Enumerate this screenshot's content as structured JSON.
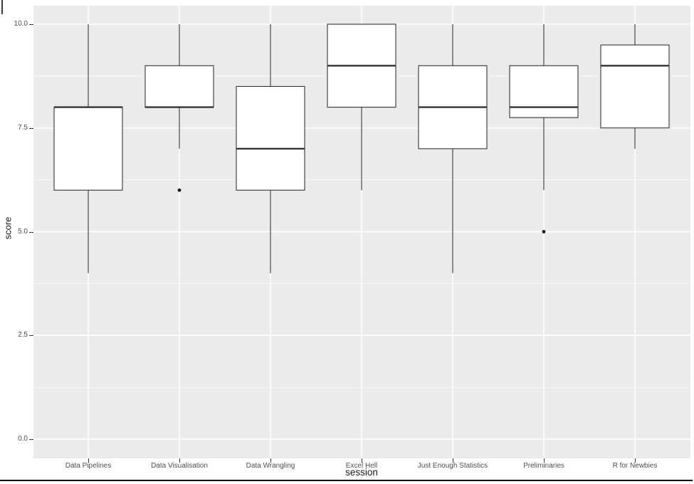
{
  "figure": {
    "title": "",
    "x_axis_title": "session",
    "y_axis_title": "score"
  },
  "chart_data": {
    "type": "boxplot",
    "title": "",
    "xlabel": "session",
    "ylabel": "score",
    "ylim": [
      0,
      10
    ],
    "y_tick_labels": [
      "0.0",
      "2.5",
      "5.0",
      "7.5",
      "10.0"
    ],
    "y_tick_values": [
      0,
      2.5,
      5,
      7.5,
      10
    ],
    "y_minor_tick_values": [
      1.25,
      3.75,
      6.25,
      8.75
    ],
    "grid": "horizontal major+minor white lines, vertical major white line per category",
    "legend": "none",
    "panel_style": "ggplot gray panel, white gridlines, white boxes with dark outline, no whisker caps",
    "categories": [
      "Data Pipelines",
      "Data Visualisation",
      "Data Wrangling",
      "Excel Hell",
      "Just Enough Statistics",
      "Preliminaries",
      "R for Newbies"
    ],
    "series": [
      {
        "category": "Data Pipelines",
        "whisker_low": 4,
        "q1": 6,
        "median": 8,
        "q3": 8,
        "whisker_high": 10,
        "outliers": []
      },
      {
        "category": "Data Visualisation",
        "whisker_low": 7,
        "q1": 8,
        "median": 8,
        "q3": 9,
        "whisker_high": 10,
        "outliers": [
          6
        ]
      },
      {
        "category": "Data Wrangling",
        "whisker_low": 4,
        "q1": 6,
        "median": 7,
        "q3": 8.5,
        "whisker_high": 10,
        "outliers": []
      },
      {
        "category": "Excel Hell",
        "whisker_low": 6,
        "q1": 8,
        "median": 9,
        "q3": 10,
        "whisker_high": 10,
        "outliers": []
      },
      {
        "category": "Just Enough Statistics",
        "whisker_low": 4,
        "q1": 7,
        "median": 8,
        "q3": 9,
        "whisker_high": 10,
        "outliers": []
      },
      {
        "category": "Preliminaries",
        "whisker_low": 6,
        "q1": 7.75,
        "median": 8,
        "q3": 9,
        "whisker_high": 10,
        "outliers": [
          5
        ]
      },
      {
        "category": "R for Newbies",
        "whisker_low": 7,
        "q1": 7.5,
        "median": 9,
        "q3": 9.5,
        "whisker_high": 10,
        "outliers": []
      }
    ]
  },
  "colors": {
    "panel_bg": "#EBEBEB",
    "grid_major": "#FFFFFF",
    "grid_minor": "#FFFFFF",
    "box_stroke": "#333333",
    "box_fill": "#FFFFFF",
    "outlier": "#1A1A1A",
    "tick_mark": "#333333",
    "axis_text": "#4D4D4D",
    "axis_title": "#1A1A1A",
    "bottom_rule": "#000000"
  }
}
